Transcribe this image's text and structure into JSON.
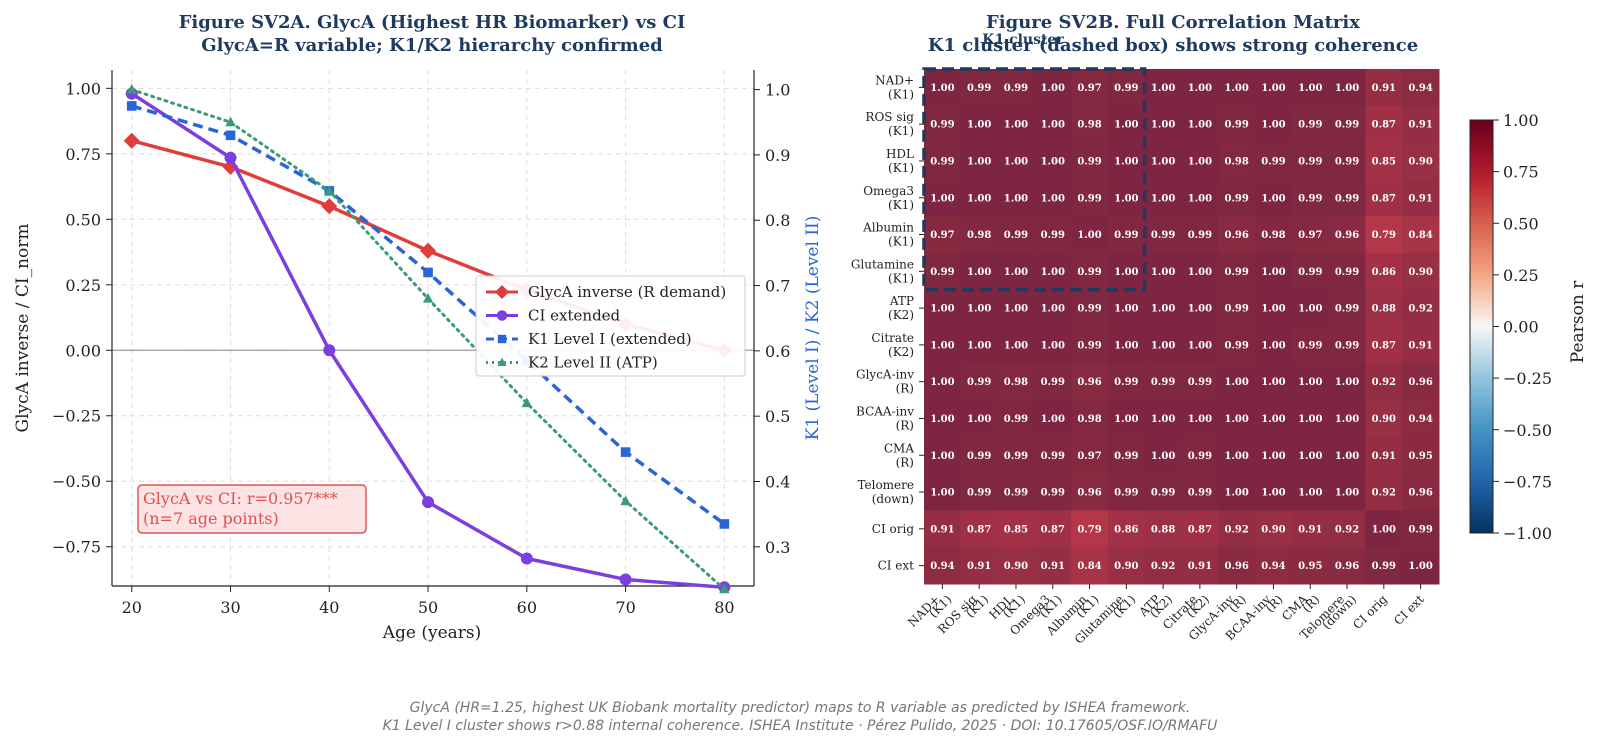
{
  "left": {
    "title_line1": "Figure SV2A. GlycA (Highest HR Biomarker) vs CI",
    "title_line2": "GlycA=R variable; K1/K2 hierarchy confirmed",
    "xlabel": "Age (years)",
    "ylabel_left": "GlycA inverse / CI_norm",
    "ylabel_right": "K1 (Level I) / K2 (Level II)",
    "annotation_line1": "GlycA vs CI: r=0.957***",
    "annotation_line2": "(n=7 age points)"
  },
  "right": {
    "title_line1": "Figure SV2B. Full Correlation Matrix",
    "title_line2": "K1 cluster (dashed box) shows strong coherence",
    "cluster_label": "K1 cluster",
    "colorbar_label": "Pearson r"
  },
  "footer": {
    "line1": "GlycA (HR=1.25, highest UK Biobank mortality predictor) maps to R variable as predicted by ISHEA framework.",
    "line2": "K1 Level I cluster shows r>0.88 internal coherence. ISHEA Institute · Pérez Pulido, 2025 · DOI: 10.17605/OSF.IO/RMAFU"
  },
  "colors": {
    "glyca": "#e03c3c",
    "ci": "#7b3fe0",
    "k1": "#2a64d8",
    "k2": "#3a9a7a",
    "title": "#1f3a5f",
    "right_axis": "#2a64d8"
  },
  "chart_data": [
    {
      "type": "line",
      "x": [
        20,
        30,
        40,
        50,
        60,
        70,
        80
      ],
      "xlim": [
        18,
        83
      ],
      "ylim_left": [
        -0.9,
        1.07
      ],
      "ylim_right": [
        0.24,
        1.03
      ],
      "xticks": [
        20,
        30,
        40,
        50,
        60,
        70,
        80
      ],
      "yticks_left": [
        -0.75,
        -0.5,
        -0.25,
        0.0,
        0.25,
        0.5,
        0.75,
        1.0
      ],
      "yticks_left_labels": [
        "−0.75",
        "−0.50",
        "−0.25",
        "0.00",
        "0.25",
        "0.50",
        "0.75",
        "1.00"
      ],
      "yticks_right": [
        0.3,
        0.4,
        0.5,
        0.6,
        0.7,
        0.8,
        0.9,
        1.0
      ],
      "yticks_right_labels": [
        "0.3",
        "0.4",
        "0.5",
        "0.6",
        "0.7",
        "0.8",
        "0.9",
        "1.0"
      ],
      "grid": true,
      "legend_position": "center-right",
      "series": [
        {
          "name": "GlycA inverse (R demand)",
          "axis": "left",
          "marker": "diamond",
          "style": "solid",
          "values": [
            0.8,
            0.7,
            0.55,
            0.38,
            0.23,
            0.1,
            0.0
          ]
        },
        {
          "name": "CI extended",
          "axis": "left",
          "marker": "circle",
          "style": "solid",
          "values": [
            0.98,
            0.735,
            0.0,
            -0.58,
            -0.795,
            -0.875,
            -0.905
          ]
        },
        {
          "name": "K1 Level I (extended)",
          "axis": "right",
          "marker": "square",
          "style": "dashed",
          "values": [
            0.975,
            0.93,
            0.845,
            0.72,
            0.585,
            0.445,
            0.335
          ]
        },
        {
          "name": "K2 Level II (ATP)",
          "axis": "right",
          "marker": "triangle",
          "style": "dotted",
          "values": [
            1.0,
            0.95,
            0.845,
            0.68,
            0.52,
            0.37,
            0.235
          ]
        }
      ]
    },
    {
      "type": "heatmap",
      "row_labels": [
        [
          "NAD+",
          "(K1)"
        ],
        [
          "ROS sig",
          "(K1)"
        ],
        [
          "HDL",
          "(K1)"
        ],
        [
          "Omega3",
          "(K1)"
        ],
        [
          "Albumin",
          "(K1)"
        ],
        [
          "Glutamine",
          "(K1)"
        ],
        [
          "ATP",
          "(K2)"
        ],
        [
          "Citrate",
          "(K2)"
        ],
        [
          "GlycA-inv",
          "(R)"
        ],
        [
          "BCAA-inv",
          "(R)"
        ],
        [
          "CMA",
          "(R)"
        ],
        [
          "Telomere",
          "(down)"
        ],
        [
          "CI orig"
        ],
        [
          "CI ext"
        ]
      ],
      "col_labels": [
        [
          "NAD+",
          "(K1)"
        ],
        [
          "ROS sig",
          "(K1)"
        ],
        [
          "HDL",
          "(K1)"
        ],
        [
          "Omega3",
          "(K1)"
        ],
        [
          "Albumin",
          "(K1)"
        ],
        [
          "Glutamine",
          "(K1)"
        ],
        [
          "ATP",
          "(K2)"
        ],
        [
          "Citrate",
          "(K2)"
        ],
        [
          "GlycA-inv",
          "(R)"
        ],
        [
          "BCAA-inv",
          "(R)"
        ],
        [
          "CMA",
          "(R)"
        ],
        [
          "Telomere",
          "(down)"
        ],
        [
          "CI orig"
        ],
        [
          "CI ext"
        ]
      ],
      "values": [
        [
          1.0,
          0.99,
          0.99,
          1.0,
          0.97,
          0.99,
          1.0,
          1.0,
          1.0,
          1.0,
          1.0,
          1.0,
          0.91,
          0.94
        ],
        [
          0.99,
          1.0,
          1.0,
          1.0,
          0.98,
          1.0,
          1.0,
          1.0,
          0.99,
          1.0,
          0.99,
          0.99,
          0.87,
          0.91
        ],
        [
          0.99,
          1.0,
          1.0,
          1.0,
          0.99,
          1.0,
          1.0,
          1.0,
          0.98,
          0.99,
          0.99,
          0.99,
          0.85,
          0.9
        ],
        [
          1.0,
          1.0,
          1.0,
          1.0,
          0.99,
          1.0,
          1.0,
          1.0,
          0.99,
          1.0,
          0.99,
          0.99,
          0.87,
          0.91
        ],
        [
          0.97,
          0.98,
          0.99,
          0.99,
          1.0,
          0.99,
          0.99,
          0.99,
          0.96,
          0.98,
          0.97,
          0.96,
          0.79,
          0.84
        ],
        [
          0.99,
          1.0,
          1.0,
          1.0,
          0.99,
          1.0,
          1.0,
          1.0,
          0.99,
          1.0,
          0.99,
          0.99,
          0.86,
          0.9
        ],
        [
          1.0,
          1.0,
          1.0,
          1.0,
          0.99,
          1.0,
          1.0,
          1.0,
          0.99,
          1.0,
          1.0,
          0.99,
          0.88,
          0.92
        ],
        [
          1.0,
          1.0,
          1.0,
          1.0,
          0.99,
          1.0,
          1.0,
          1.0,
          0.99,
          1.0,
          0.99,
          0.99,
          0.87,
          0.91
        ],
        [
          1.0,
          0.99,
          0.98,
          0.99,
          0.96,
          0.99,
          0.99,
          0.99,
          1.0,
          1.0,
          1.0,
          1.0,
          0.92,
          0.96
        ],
        [
          1.0,
          1.0,
          0.99,
          1.0,
          0.98,
          1.0,
          1.0,
          1.0,
          1.0,
          1.0,
          1.0,
          1.0,
          0.9,
          0.94
        ],
        [
          1.0,
          0.99,
          0.99,
          0.99,
          0.97,
          0.99,
          1.0,
          0.99,
          1.0,
          1.0,
          1.0,
          1.0,
          0.91,
          0.95
        ],
        [
          1.0,
          0.99,
          0.99,
          0.99,
          0.96,
          0.99,
          0.99,
          0.99,
          1.0,
          1.0,
          1.0,
          1.0,
          0.92,
          0.96
        ],
        [
          0.91,
          0.87,
          0.85,
          0.87,
          0.79,
          0.86,
          0.88,
          0.87,
          0.92,
          0.9,
          0.91,
          0.92,
          1.0,
          0.99
        ],
        [
          0.94,
          0.91,
          0.9,
          0.91,
          0.84,
          0.9,
          0.92,
          0.91,
          0.96,
          0.94,
          0.95,
          0.96,
          0.99,
          1.0
        ]
      ],
      "k1_cluster": [
        0,
        5
      ],
      "colorbar_range": [
        -1.0,
        1.0
      ],
      "colorbar_ticks": [
        1.0,
        0.75,
        0.5,
        0.25,
        0.0,
        -0.25,
        -0.5,
        -0.75,
        -1.0
      ],
      "colorbar_tick_labels": [
        "1.00",
        "0.75",
        "0.50",
        "0.25",
        "0.00",
        "−0.25",
        "−0.50",
        "−0.75",
        "−1.00"
      ],
      "colormap": "RdBu_r"
    }
  ]
}
